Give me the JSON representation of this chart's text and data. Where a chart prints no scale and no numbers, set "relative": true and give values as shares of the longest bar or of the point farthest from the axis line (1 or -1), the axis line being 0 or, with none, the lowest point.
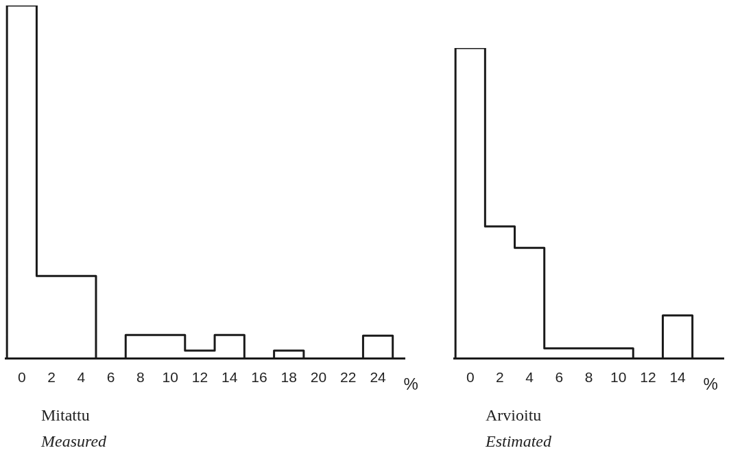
{
  "chart_data": [
    {
      "type": "step",
      "title": "Mitattu",
      "subtitle": "Measured",
      "xlabel": "%",
      "relative": true,
      "color": "#1a1a1a",
      "grid": false,
      "legend": false,
      "x": [
        -1,
        1,
        5,
        7,
        11,
        13,
        15,
        17,
        19,
        23,
        25,
        25
      ],
      "values": [
        0,
        1,
        0.234,
        0,
        0.067,
        0.023,
        0.067,
        0,
        0.023,
        0,
        0.065,
        0
      ],
      "xlim": [
        -1.1,
        25.8
      ],
      "xticks": [
        0,
        2,
        4,
        6,
        8,
        10,
        12,
        14,
        16,
        18,
        20,
        22,
        24
      ]
    },
    {
      "type": "step",
      "title": "Arvioitu",
      "subtitle": "Estimated",
      "xlabel": "%",
      "relative": true,
      "color": "#1a1a1a",
      "grid": false,
      "legend": false,
      "x": [
        -1,
        1,
        3,
        5,
        11,
        13,
        15,
        15
      ],
      "values": [
        0,
        1,
        0.426,
        0.357,
        0.033,
        0,
        0.139,
        0
      ],
      "xlim": [
        -1.1,
        17.1
      ],
      "xticks": [
        0,
        2,
        4,
        6,
        8,
        10,
        12,
        14
      ]
    }
  ]
}
